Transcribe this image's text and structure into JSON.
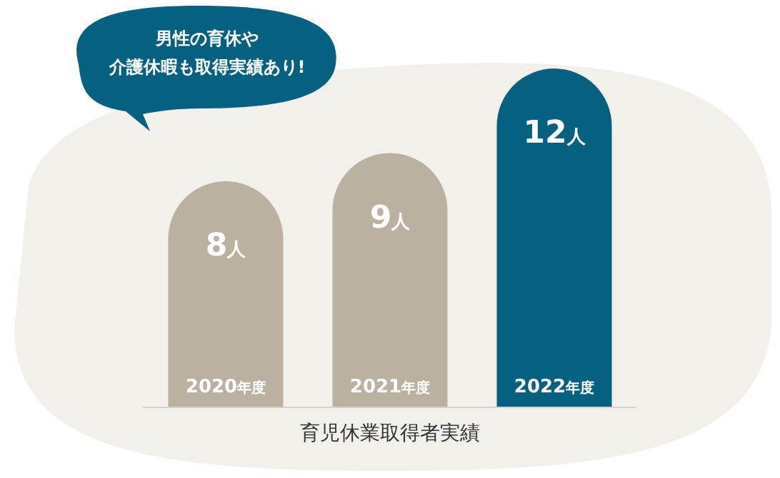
{
  "chart_data": {
    "type": "bar",
    "relative": false,
    "categories": [
      "2020年度",
      "2021年度",
      "2022年度"
    ],
    "values": [
      8,
      9,
      12
    ],
    "colors": [
      "#bab1a0",
      "#bab1a0",
      "#06607f"
    ],
    "value_labels": [
      "8人",
      "9人",
      "12人"
    ],
    "xlabel": "育児休業取得者実績",
    "annotations": [
      "男性の育休や",
      "介護休暇も取得実績あり!"
    ]
  }
}
